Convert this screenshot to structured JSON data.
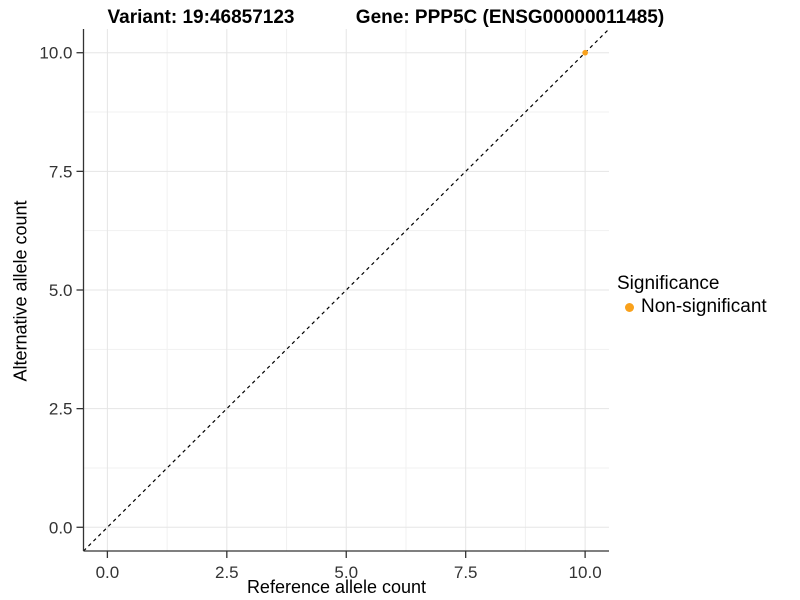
{
  "chart_data": {
    "type": "scatter",
    "titles": [
      "Variant: 19:46857123",
      "Gene: PPP5C (ENSG00000011485)"
    ],
    "xlabel": "Reference allele count",
    "ylabel": "Alternative allele count",
    "xlim": [
      -0.5,
      10.5
    ],
    "ylim": [
      -0.5,
      10.5
    ],
    "xticks": {
      "values": [
        0,
        2.5,
        5,
        7.5,
        10
      ],
      "labels": [
        "0.0",
        "2.5",
        "5.0",
        "7.5",
        "10.0"
      ]
    },
    "yticks": {
      "values": [
        0,
        2.5,
        5,
        7.5,
        10
      ],
      "labels": [
        "0.0",
        "2.5",
        "5.0",
        "7.5",
        "10.0"
      ]
    },
    "minor_grid_x": [
      1.25,
      3.75,
      6.25,
      8.75
    ],
    "minor_grid_y": [
      1.25,
      3.75,
      6.25,
      8.75
    ],
    "grid": true,
    "points": [
      {
        "x": 10,
        "y": 10,
        "series": "Non-significant"
      }
    ],
    "identity_line": {
      "style": "dashed",
      "from": [
        -0.5,
        -0.5
      ],
      "to": [
        10.5,
        10.5
      ],
      "color": "#000000"
    },
    "legend": {
      "title": "Significance",
      "position": "right",
      "entries": [
        {
          "label": "Non-significant",
          "color": "#F9A11B",
          "marker": "circle"
        }
      ]
    },
    "colors": {
      "point": "#F9A11B",
      "grid_major": "#e5e5e5",
      "grid_minor": "#f1f1f1",
      "axis": "#333333",
      "tick_text": "#333333",
      "background": "#ffffff"
    }
  }
}
